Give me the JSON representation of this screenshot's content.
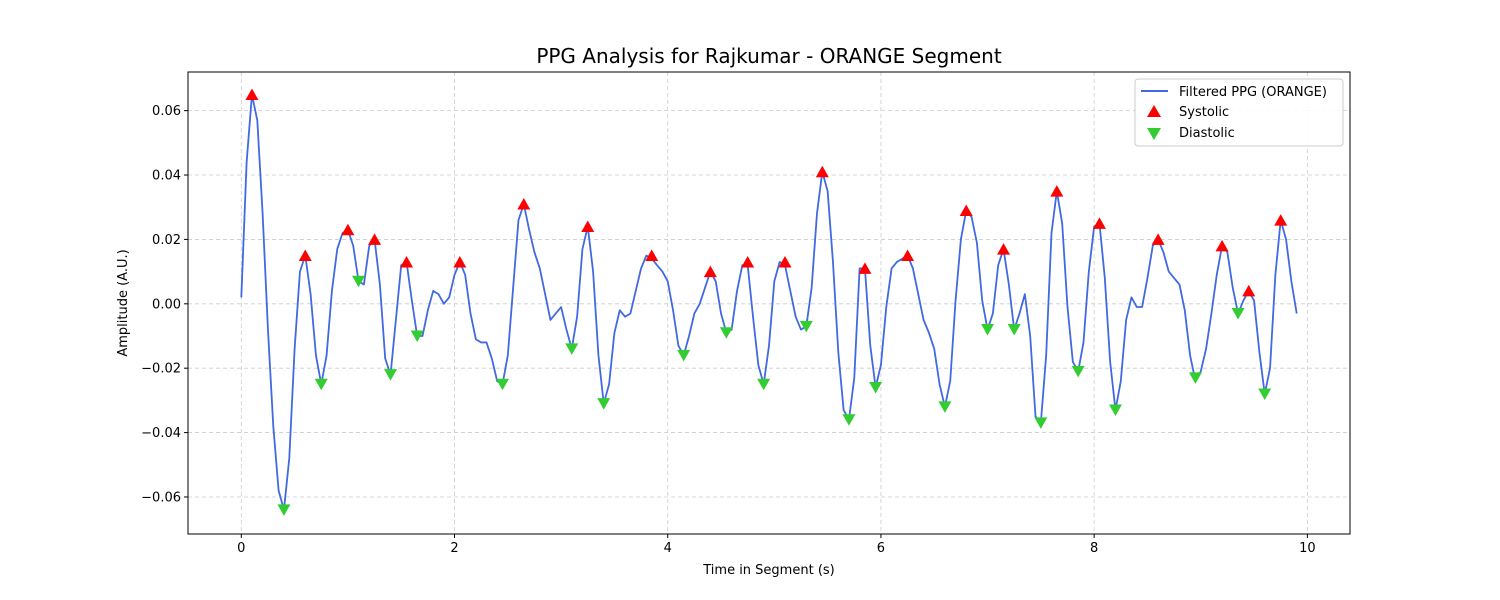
{
  "chart_data": {
    "type": "line",
    "title": "PPG Analysis for Rajkumar - ORANGE Segment",
    "xlabel": "Time in Segment (s)",
    "ylabel": "Amplitude (A.U.)",
    "xlim": [
      -0.5,
      10.4
    ],
    "ylim": [
      -0.0715,
      0.072
    ],
    "xticks": [
      0,
      2,
      4,
      6,
      8,
      10
    ],
    "xtick_labels": [
      "0",
      "2",
      "4",
      "6",
      "8",
      "10"
    ],
    "yticks": [
      -0.06,
      -0.04,
      -0.02,
      0.0,
      0.02,
      0.04,
      0.06
    ],
    "ytick_labels": [
      "−0.06",
      "−0.04",
      "−0.02",
      "0.00",
      "0.02",
      "0.04",
      "0.06"
    ],
    "grid": true,
    "legend_position": "top-right",
    "series": [
      {
        "name": "Filtered PPG (ORANGE)",
        "kind": "line",
        "color": "#4169e1",
        "x": [
          0.0,
          0.05,
          0.1,
          0.15,
          0.2,
          0.25,
          0.3,
          0.35,
          0.4,
          0.45,
          0.5,
          0.55,
          0.6,
          0.65,
          0.7,
          0.75,
          0.8,
          0.85,
          0.9,
          0.95,
          1.0,
          1.05,
          1.1,
          1.15,
          1.2,
          1.25,
          1.3,
          1.35,
          1.4,
          1.45,
          1.5,
          1.55,
          1.6,
          1.65,
          1.7,
          1.75,
          1.8,
          1.85,
          1.9,
          1.95,
          2.0,
          2.05,
          2.1,
          2.15,
          2.2,
          2.25,
          2.3,
          2.35,
          2.4,
          2.45,
          2.5,
          2.55,
          2.6,
          2.65,
          2.7,
          2.75,
          2.8,
          2.85,
          2.9,
          2.95,
          3.0,
          3.05,
          3.1,
          3.15,
          3.2,
          3.25,
          3.3,
          3.35,
          3.4,
          3.45,
          3.5,
          3.55,
          3.6,
          3.65,
          3.7,
          3.75,
          3.8,
          3.85,
          3.9,
          3.95,
          4.0,
          4.05,
          4.1,
          4.15,
          4.2,
          4.25,
          4.3,
          4.35,
          4.4,
          4.45,
          4.5,
          4.55,
          4.6,
          4.65,
          4.7,
          4.75,
          4.8,
          4.85,
          4.9,
          4.95,
          5.0,
          5.05,
          5.1,
          5.15,
          5.2,
          5.25,
          5.3,
          5.35,
          5.4,
          5.45,
          5.5,
          5.55,
          5.6,
          5.65,
          5.7,
          5.75,
          5.8,
          5.85,
          5.9,
          5.95,
          6.0,
          6.05,
          6.1,
          6.15,
          6.2,
          6.25,
          6.3,
          6.35,
          6.4,
          6.45,
          6.5,
          6.55,
          6.6,
          6.65,
          6.7,
          6.75,
          6.8,
          6.85,
          6.9,
          6.95,
          7.0,
          7.05,
          7.1,
          7.15,
          7.2,
          7.25,
          7.3,
          7.35,
          7.4,
          7.45,
          7.5,
          7.55,
          7.6,
          7.65,
          7.7,
          7.75,
          7.8,
          7.85,
          7.9,
          7.95,
          8.0,
          8.05,
          8.1,
          8.15,
          8.2,
          8.25,
          8.3,
          8.35,
          8.4,
          8.45,
          8.5,
          8.55,
          8.6,
          8.65,
          8.7,
          8.75,
          8.8,
          8.85,
          8.9,
          8.95,
          9.0,
          9.05,
          9.1,
          9.15,
          9.2,
          9.25,
          9.3,
          9.35,
          9.4,
          9.45,
          9.5,
          9.55,
          9.6,
          9.65,
          9.7,
          9.75,
          9.8,
          9.85,
          9.9
        ],
        "y": [
          0.002,
          0.044,
          0.065,
          0.057,
          0.028,
          -0.008,
          -0.038,
          -0.058,
          -0.064,
          -0.048,
          -0.014,
          0.01,
          0.015,
          0.003,
          -0.016,
          -0.025,
          -0.016,
          0.004,
          0.017,
          0.022,
          0.023,
          0.018,
          0.007,
          0.006,
          0.018,
          0.02,
          0.006,
          -0.017,
          -0.022,
          -0.005,
          0.012,
          0.013,
          0.001,
          -0.01,
          -0.01,
          -0.002,
          0.004,
          0.003,
          0.0,
          0.002,
          0.009,
          0.013,
          0.009,
          -0.003,
          -0.011,
          -0.012,
          -0.012,
          -0.017,
          -0.024,
          -0.025,
          -0.016,
          0.005,
          0.026,
          0.031,
          0.023,
          0.016,
          0.011,
          0.003,
          -0.005,
          -0.003,
          -0.001,
          -0.008,
          -0.014,
          -0.004,
          0.017,
          0.024,
          0.01,
          -0.016,
          -0.031,
          -0.025,
          -0.009,
          -0.002,
          -0.004,
          -0.003,
          0.004,
          0.011,
          0.015,
          0.014,
          0.012,
          0.01,
          0.007,
          -0.002,
          -0.013,
          -0.016,
          -0.01,
          -0.003,
          0.0,
          0.005,
          0.01,
          0.007,
          -0.003,
          -0.009,
          -0.008,
          0.004,
          0.012,
          0.012,
          -0.004,
          -0.019,
          -0.025,
          -0.013,
          0.007,
          0.013,
          0.012,
          0.004,
          -0.004,
          -0.008,
          -0.007,
          0.005,
          0.028,
          0.041,
          0.035,
          0.013,
          -0.015,
          -0.033,
          -0.036,
          -0.023,
          0.011,
          0.011,
          -0.013,
          -0.026,
          -0.019,
          -0.001,
          0.011,
          0.013,
          0.014,
          0.015,
          0.011,
          0.003,
          -0.005,
          -0.009,
          -0.014,
          -0.025,
          -0.032,
          -0.024,
          0.001,
          0.02,
          0.029,
          0.027,
          0.019,
          0.001,
          -0.008,
          -0.003,
          0.012,
          0.017,
          0.006,
          -0.008,
          -0.003,
          0.003,
          -0.01,
          -0.035,
          -0.037,
          -0.016,
          0.022,
          0.035,
          0.025,
          -0.001,
          -0.018,
          -0.021,
          -0.012,
          0.01,
          0.024,
          0.025,
          0.008,
          -0.018,
          -0.033,
          -0.024,
          -0.005,
          0.002,
          -0.001,
          -0.001,
          0.008,
          0.018,
          0.02,
          0.016,
          0.01,
          0.008,
          0.006,
          -0.002,
          -0.016,
          -0.024,
          -0.021,
          -0.014,
          -0.003,
          0.009,
          0.018,
          0.016,
          0.005,
          -0.003,
          0.001,
          0.004,
          0.001,
          -0.015,
          -0.028,
          -0.02,
          0.009,
          0.026,
          0.02,
          0.007,
          -0.003
        ]
      },
      {
        "name": "Systolic",
        "kind": "marker",
        "marker": "triangle-up",
        "color": "#ff0000",
        "x": [
          0.1,
          0.6,
          1.0,
          1.25,
          1.55,
          2.05,
          2.65,
          3.25,
          3.85,
          4.4,
          4.75,
          5.1,
          5.45,
          5.85,
          6.25,
          6.8,
          7.15,
          7.65,
          8.05,
          8.6,
          9.2,
          9.45,
          9.75
        ],
        "y": [
          0.065,
          0.015,
          0.023,
          0.02,
          0.013,
          0.013,
          0.031,
          0.024,
          0.015,
          0.01,
          0.013,
          0.013,
          0.041,
          0.011,
          0.015,
          0.029,
          0.017,
          0.035,
          0.025,
          0.02,
          0.018,
          0.004,
          0.026
        ]
      },
      {
        "name": "Diastolic",
        "kind": "marker",
        "marker": "triangle-down",
        "color": "#32cd32",
        "x": [
          0.4,
          0.75,
          1.1,
          1.4,
          1.65,
          2.45,
          3.1,
          3.4,
          4.15,
          4.55,
          4.9,
          5.3,
          5.7,
          5.95,
          6.6,
          7.0,
          7.25,
          7.5,
          7.85,
          8.2,
          8.95,
          9.35,
          9.6
        ],
        "y": [
          -0.064,
          -0.025,
          0.007,
          -0.022,
          -0.01,
          -0.025,
          -0.014,
          -0.031,
          -0.016,
          -0.009,
          -0.025,
          -0.007,
          -0.036,
          -0.026,
          -0.032,
          -0.008,
          -0.008,
          -0.037,
          -0.021,
          -0.033,
          -0.023,
          -0.003,
          -0.028
        ]
      }
    ]
  }
}
